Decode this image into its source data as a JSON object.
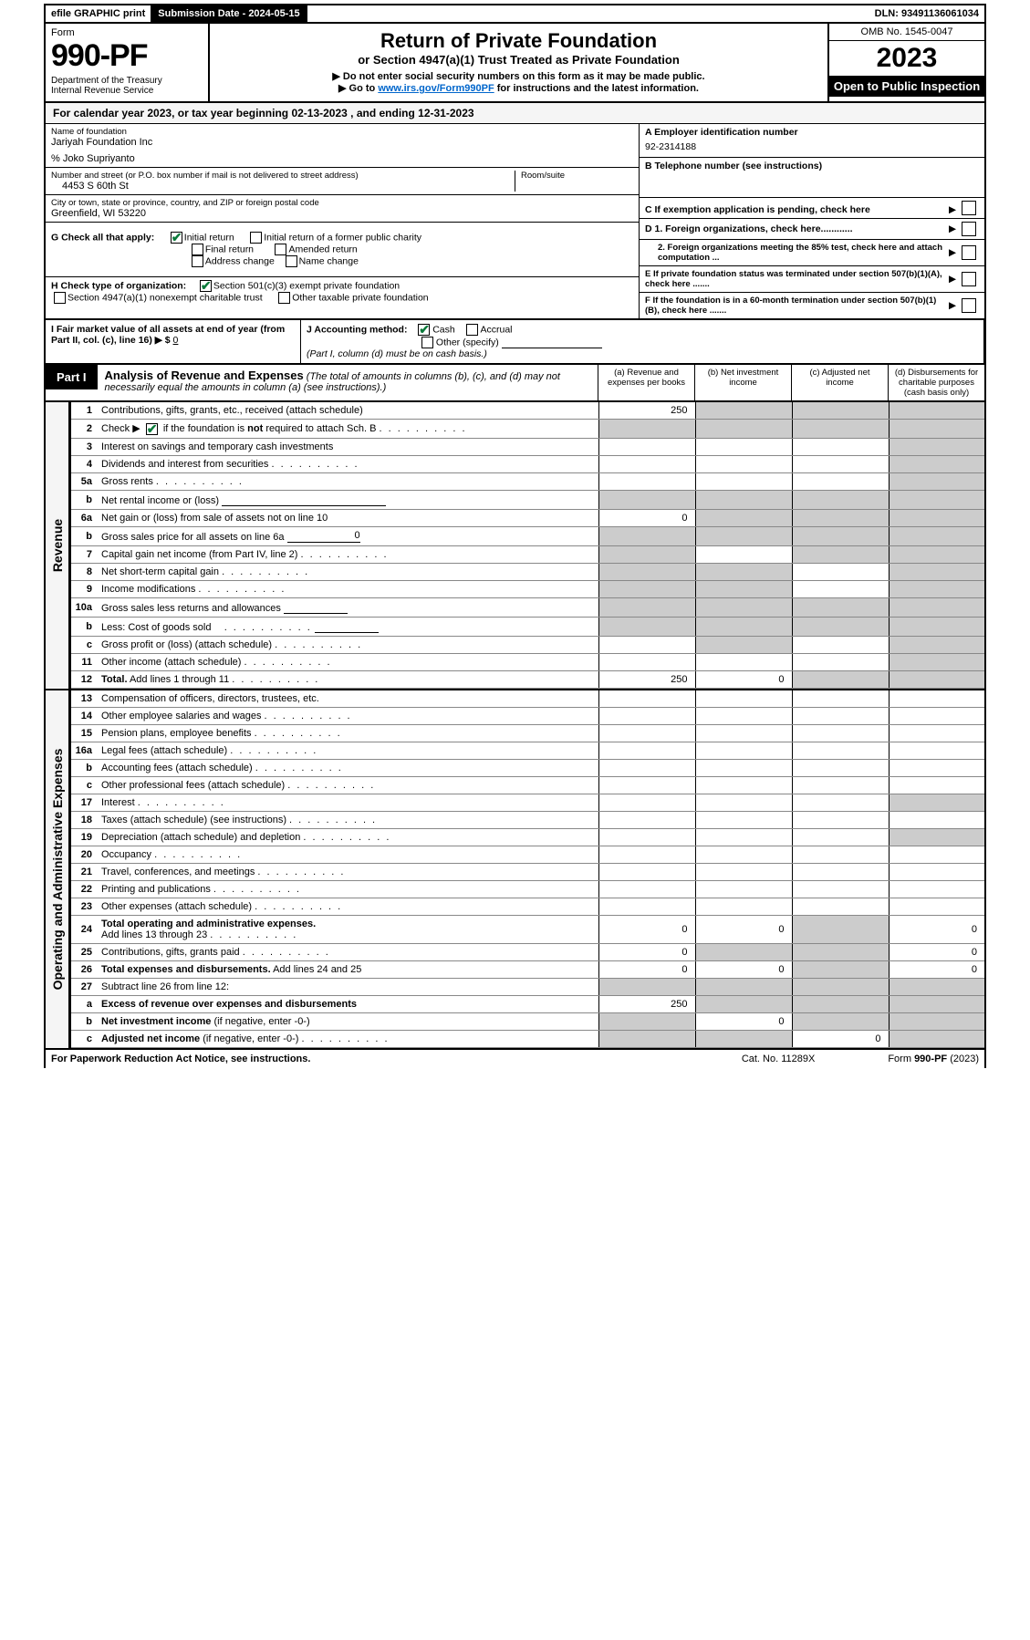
{
  "topbar": {
    "efile": "efile GRAPHIC print",
    "submission_lbl": "Submission Date - 2024-05-15",
    "dln": "DLN: 93491136061034"
  },
  "header": {
    "form_lbl": "Form",
    "form_no": "990-PF",
    "dept": "Department of the Treasury",
    "irs": "Internal Revenue Service",
    "title": "Return of Private Foundation",
    "subtitle": "or Section 4947(a)(1) Trust Treated as Private Foundation",
    "note1": "▶ Do not enter social security numbers on this form as it may be made public.",
    "note2_pre": "▶ Go to ",
    "note2_link": "www.irs.gov/Form990PF",
    "note2_post": " for instructions and the latest information.",
    "omb": "OMB No. 1545-0047",
    "year": "2023",
    "open": "Open to Public Inspection"
  },
  "calrow": "For calendar year 2023, or tax year beginning 02-13-2023            , and ending 12-31-2023",
  "info": {
    "name_lbl": "Name of foundation",
    "name_val": "Jariyah Foundation Inc",
    "care_of": "% Joko Supriyanto",
    "addr_lbl": "Number and street (or P.O. box number if mail is not delivered to street address)",
    "addr_val": "4453 S 60th St",
    "room_lbl": "Room/suite",
    "city_lbl": "City or town, state or province, country, and ZIP or foreign postal code",
    "city_val": "Greenfield, WI  53220",
    "ein_lbl": "A Employer identification number",
    "ein_val": "92-2314188",
    "tel_lbl": "B Telephone number (see instructions)",
    "c_lbl": "C If exemption application is pending, check here",
    "d1": "D 1. Foreign organizations, check here............",
    "d2": "2. Foreign organizations meeting the 85% test, check here and attach computation ...",
    "e": "E  If private foundation status was terminated under section 507(b)(1)(A), check here .......",
    "f": "F  If the foundation is in a 60-month termination under section 507(b)(1)(B), check here ......."
  },
  "g": {
    "lbl": "G Check all that apply:",
    "opts": [
      "Initial return",
      "Initial return of a former public charity",
      "Final return",
      "Amended return",
      "Address change",
      "Name change"
    ]
  },
  "h": {
    "lbl": "H Check type of organization:",
    "opts": [
      "Section 501(c)(3) exempt private foundation",
      "Section 4947(a)(1) nonexempt charitable trust",
      "Other taxable private foundation"
    ]
  },
  "i": {
    "lbl": "I Fair market value of all assets at end of year (from Part II, col. (c), line 16) ▶ $",
    "val": "0"
  },
  "j": {
    "lbl": "J Accounting method:",
    "opts": [
      "Cash",
      "Accrual",
      "Other (specify)"
    ],
    "note": "(Part I, column (d) must be on cash basis.)"
  },
  "part1": {
    "tab": "Part I",
    "title": "Analysis of Revenue and Expenses",
    "desc": " (The total of amounts in columns (b), (c), and (d) may not necessarily equal the amounts in column (a) (see instructions).)",
    "cols": {
      "a": "(a)  Revenue and expenses per books",
      "b": "(b)  Net investment income",
      "c": "(c)  Adjusted net income",
      "d": "(d)  Disbursements for charitable purposes (cash basis only)"
    }
  },
  "sides": {
    "rev": "Revenue",
    "exp": "Operating and Administrative Expenses"
  },
  "lines": {
    "l1": "Contributions, gifts, grants, etc., received (attach schedule)",
    "l2a": "Check ▶",
    "l2b": " if the foundation is ",
    "l2c": "not",
    "l2d": " required to attach Sch. B",
    "l3": "Interest on savings and temporary cash investments",
    "l4": "Dividends and interest from securities",
    "l5a": "Gross rents",
    "l5b": "Net rental income or (loss)",
    "l6a": "Net gain or (loss) from sale of assets not on line 10",
    "l6b": "Gross sales price for all assets on line 6a",
    "l7": "Capital gain net income (from Part IV, line 2)",
    "l8": "Net short-term capital gain",
    "l9": "Income modifications",
    "l10a": "Gross sales less returns and allowances",
    "l10b": "Less: Cost of goods sold",
    "l10c": "Gross profit or (loss) (attach schedule)",
    "l11": "Other income (attach schedule)",
    "l12": "Total.",
    "l12b": " Add lines 1 through 11",
    "l13": "Compensation of officers, directors, trustees, etc.",
    "l14": "Other employee salaries and wages",
    "l15": "Pension plans, employee benefits",
    "l16a": "Legal fees (attach schedule)",
    "l16b": "Accounting fees (attach schedule)",
    "l16c": "Other professional fees (attach schedule)",
    "l17": "Interest",
    "l18": "Taxes (attach schedule) (see instructions)",
    "l19": "Depreciation (attach schedule) and depletion",
    "l20": "Occupancy",
    "l21": "Travel, conferences, and meetings",
    "l22": "Printing and publications",
    "l23": "Other expenses (attach schedule)",
    "l24": "Total operating and administrative expenses.",
    "l24b": "Add lines 13 through 23",
    "l25": "Contributions, gifts, grants paid",
    "l26": "Total expenses and disbursements.",
    "l26b": " Add lines 24 and 25",
    "l27": "Subtract line 26 from line 12:",
    "l27a": "Excess of revenue over expenses and disbursements",
    "l27b": "Net investment income",
    "l27b2": " (if negative, enter -0-)",
    "l27c": "Adjusted net income",
    "l27c2": " (if negative, enter -0-)"
  },
  "vals": {
    "l1a": "250",
    "l6aa": "0",
    "l6bv": "0",
    "l12a": "250",
    "l12b": "0",
    "l24a": "0",
    "l24b": "0",
    "l24d": "0",
    "l25a": "0",
    "l25d": "0",
    "l26a": "0",
    "l26b": "0",
    "l26d": "0",
    "l27aa": "250",
    "l27bb": "0",
    "l27cc": "0"
  },
  "footer": {
    "l": "For Paperwork Reduction Act Notice, see instructions.",
    "m": "Cat. No. 11289X",
    "r": "Form 990-PF (2023)"
  },
  "colors": {
    "grey": "#cccccc",
    "link": "#0066cc",
    "check": "#0a7a3a"
  }
}
